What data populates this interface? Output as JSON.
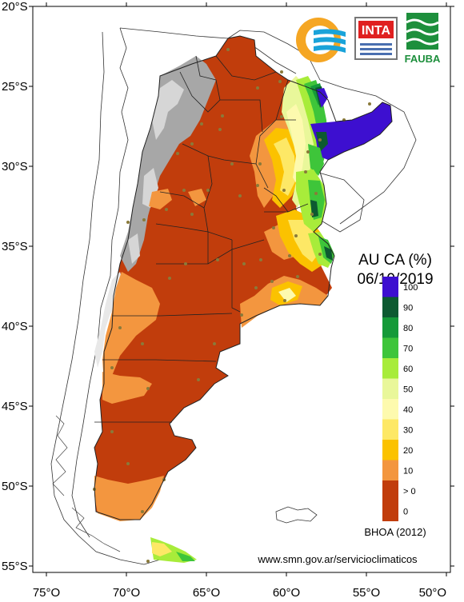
{
  "title_line1": "AU CA (%)",
  "title_line2": "06/10/2019",
  "method": "BHOA (2012)",
  "url": "www.smn.gov.ar/servicioclimaticos",
  "logos": {
    "inta": "INTA",
    "fauba": "FAUBA"
  },
  "lat_ticks": [
    {
      "value": -20,
      "label": "20°S"
    },
    {
      "value": -25,
      "label": "25°S"
    },
    {
      "value": -30,
      "label": "30°S"
    },
    {
      "value": -35,
      "label": "35°S"
    },
    {
      "value": -40,
      "label": "40°S"
    },
    {
      "value": -45,
      "label": "45°S"
    },
    {
      "value": -50,
      "label": "50°S"
    },
    {
      "value": -55,
      "label": "55°S"
    }
  ],
  "lon_ticks": [
    {
      "value": -75,
      "label": "75°O"
    },
    {
      "value": -70,
      "label": "70°O"
    },
    {
      "value": -65,
      "label": "65°O"
    },
    {
      "value": -60,
      "label": "60°O"
    },
    {
      "value": -55,
      "label": "55°O"
    },
    {
      "value": -50,
      "label": "50°O"
    }
  ],
  "legend": [
    {
      "label": "0",
      "color": "#c13d0c"
    },
    {
      "label": "> 0",
      "color": "#c13d0c"
    },
    {
      "label": "10",
      "color": "#f3963f"
    },
    {
      "label": "20",
      "color": "#fbc200"
    },
    {
      "label": "30",
      "color": "#fde866"
    },
    {
      "label": "40",
      "color": "#fdfaae"
    },
    {
      "label": "50",
      "color": "#e9f79a"
    },
    {
      "label": "60",
      "color": "#a8ec3a"
    },
    {
      "label": "70",
      "color": "#3ec53a"
    },
    {
      "label": "80",
      "color": "#159a39"
    },
    {
      "label": "90",
      "color": "#0d5a31"
    },
    {
      "label": "100",
      "color": "#3d0fd0"
    }
  ]
}
